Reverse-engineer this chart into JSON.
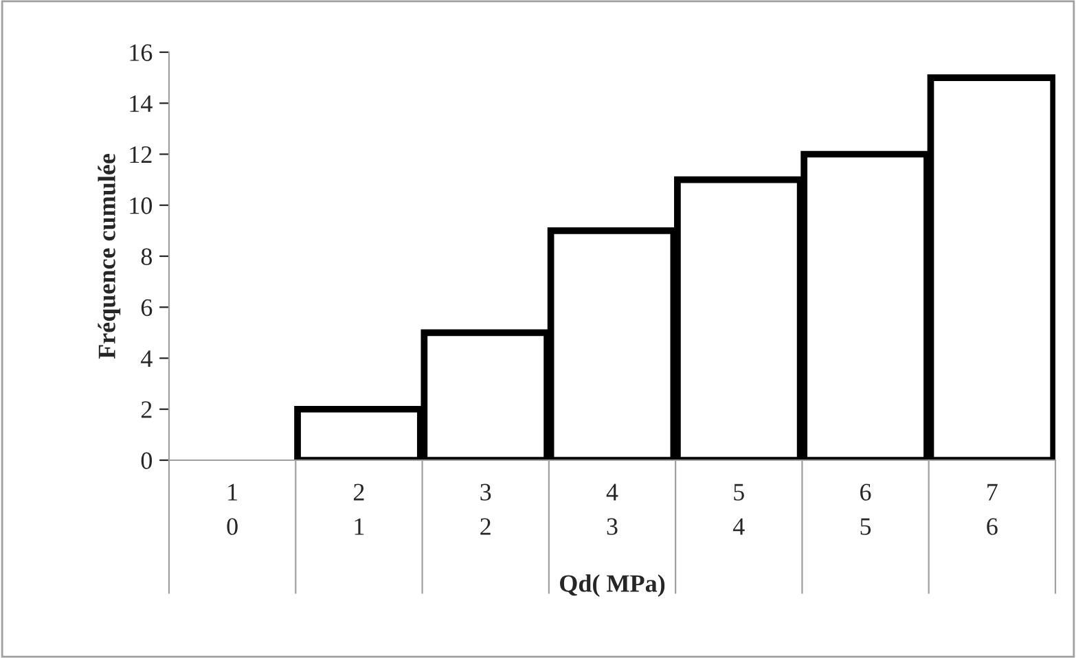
{
  "chart_data": {
    "type": "bar",
    "xlabel": "Qd( MPa)",
    "ylabel": "Fréquence cumulée",
    "categories": [
      "1",
      "2",
      "3",
      "4",
      "5",
      "6",
      "7"
    ],
    "annotations": [
      "0",
      "1",
      "2",
      "3",
      "4",
      "5",
      "6"
    ],
    "values": [
      0,
      2,
      5,
      9,
      11,
      12,
      15
    ],
    "color": "#ffffff",
    "ylim": [
      0,
      16
    ],
    "yticks": [
      0,
      2,
      4,
      6,
      8,
      10,
      12,
      14,
      16
    ],
    "grid": false,
    "legend": false
  }
}
